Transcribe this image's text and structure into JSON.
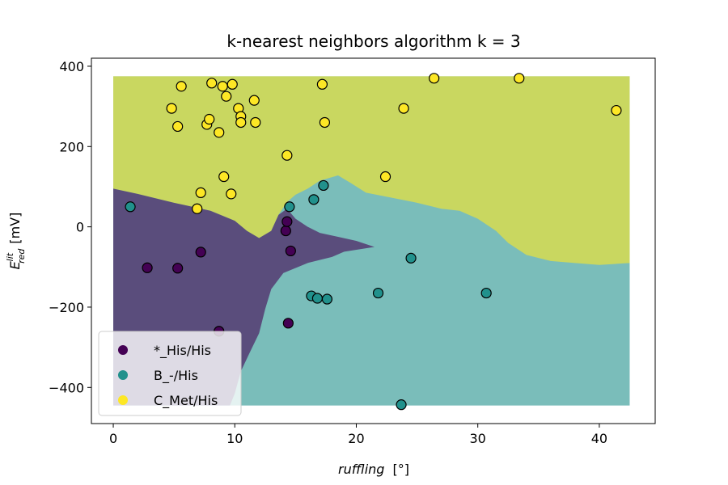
{
  "chart_data": {
    "type": "scatter",
    "title": "k-nearest neighbors algorithm k = 3",
    "xlabel": "ruffling",
    "xlabel_unit": "[°]",
    "ylabel": {
      "main": "E",
      "sup": "lit",
      "sub": "red",
      "unit": "[mV]"
    },
    "xlim": [
      -1.8,
      44.6
    ],
    "ylim": [
      -490,
      420
    ],
    "xticks": [
      0,
      10,
      20,
      30,
      40
    ],
    "yticks": [
      -400,
      -200,
      0,
      200,
      400
    ],
    "xtick_labels": [
      "0",
      "10",
      "20",
      "30",
      "40"
    ],
    "ytick_labels": [
      "−400",
      "−200",
      "0",
      "200",
      "400"
    ],
    "grid": false,
    "legend_position": "lower-left",
    "decision_regions": {
      "x_range": [
        0,
        42.5
      ],
      "y_range": [
        -445,
        375
      ],
      "class2_lower_boundary": [
        [
          0,
          95
        ],
        [
          2,
          82
        ],
        [
          5,
          60
        ],
        [
          8,
          40
        ],
        [
          10,
          15
        ],
        [
          11,
          -10
        ],
        [
          12,
          -28
        ],
        [
          13,
          -10
        ],
        [
          13.6,
          30
        ],
        [
          14.3,
          62
        ],
        [
          15,
          80
        ],
        [
          16,
          95
        ],
        [
          17,
          115
        ],
        [
          18.5,
          128
        ],
        [
          19.5,
          110
        ],
        [
          20.8,
          85
        ],
        [
          22.5,
          75
        ],
        [
          25,
          60
        ],
        [
          27,
          45
        ],
        [
          28.5,
          40
        ],
        [
          30,
          20
        ],
        [
          31.5,
          -10
        ],
        [
          32.5,
          -40
        ],
        [
          34,
          -70
        ],
        [
          36,
          -85
        ],
        [
          38,
          -90
        ],
        [
          40,
          -95
        ],
        [
          42.5,
          -90
        ]
      ],
      "class0_boundary": [
        [
          0,
          95
        ],
        [
          2,
          82
        ],
        [
          5,
          60
        ],
        [
          8,
          40
        ],
        [
          10,
          15
        ],
        [
          11,
          -10
        ],
        [
          12,
          -28
        ],
        [
          13,
          -10
        ],
        [
          13.6,
          30
        ],
        [
          14.3,
          45
        ],
        [
          15,
          20
        ],
        [
          16,
          0
        ],
        [
          17,
          -15
        ],
        [
          18.5,
          -25
        ],
        [
          20,
          -35
        ],
        [
          21.5,
          -50
        ],
        [
          19,
          -62
        ],
        [
          18,
          -75
        ],
        [
          16,
          -90
        ],
        [
          14,
          -115
        ],
        [
          13,
          -155
        ],
        [
          12.5,
          -205
        ],
        [
          12,
          -265
        ],
        [
          11.2,
          -315
        ],
        [
          10.5,
          -360
        ],
        [
          10,
          -415
        ],
        [
          9.6,
          -445
        ],
        [
          0,
          -445
        ]
      ]
    },
    "series": [
      {
        "name": "*_His/His",
        "color": "#440154",
        "x": [
          2.8,
          5.3,
          7.2,
          8.7,
          14.2,
          14.3,
          14.6,
          14.4
        ],
        "y": [
          -102,
          -103,
          -63,
          -260,
          -10,
          13,
          -60,
          -240
        ]
      },
      {
        "name": "B_-/His",
        "color": "#21918c",
        "x": [
          1.4,
          14.5,
          16.5,
          17.3,
          16.3,
          16.8,
          17.6,
          21.8,
          24.5,
          30.7,
          23.7
        ],
        "y": [
          50,
          50,
          68,
          103,
          -172,
          -178,
          -180,
          -165,
          -78,
          -165,
          -443
        ]
      },
      {
        "name": "C_Met/His",
        "color": "#fde725",
        "x": [
          5.6,
          8.1,
          9.8,
          4.8,
          7.7,
          9.3,
          10.3,
          11.6,
          10.5,
          10.5,
          7.9,
          8.7,
          5.3,
          9.0,
          9.1,
          11.7,
          7.2,
          9.7,
          6.9,
          14.3,
          17.2,
          17.4,
          23.9,
          22.4,
          26.4,
          33.4,
          41.4
        ],
        "y": [
          350,
          358,
          355,
          295,
          255,
          325,
          295,
          315,
          275,
          260,
          268,
          235,
          250,
          350,
          125,
          260,
          85,
          82,
          45,
          178,
          355,
          260,
          295,
          125,
          370,
          370,
          290
        ]
      }
    ]
  }
}
